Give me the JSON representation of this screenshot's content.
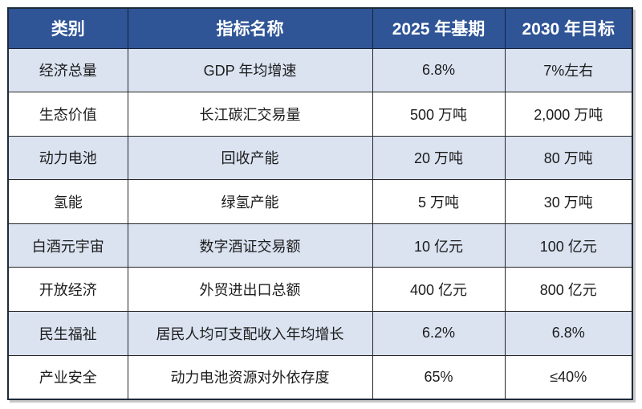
{
  "colors": {
    "header_background": "#2F5597",
    "header_text": "#FFFFFF",
    "row_shaded_background": "#DBE3F1",
    "row_plain_background": "#FFFFFF",
    "body_text": "#1C1C1C",
    "grid_border": "#262626",
    "drop_shadow": "#C9C9C9"
  },
  "chart_data": {
    "type": "table",
    "columns": [
      "类别",
      "指标名称",
      "2025 年基期",
      "2030 年目标"
    ],
    "rows": [
      [
        "经济总量",
        "GDP 年均增速",
        "6.8%",
        "7%左右"
      ],
      [
        "生态价值",
        "长江碳汇交易量",
        "500 万吨",
        "2,000 万吨"
      ],
      [
        "动力电池",
        "回收产能",
        "20 万吨",
        "80 万吨"
      ],
      [
        "氢能",
        "绿氢产能",
        "5 万吨",
        "30 万吨"
      ],
      [
        "白酒元宇宙",
        "数字酒证交易额",
        "10 亿元",
        "100 亿元"
      ],
      [
        "开放经济",
        "外贸进出口总额",
        "400 亿元",
        "800 亿元"
      ],
      [
        "民生福祉",
        "居民人均可支配收入年均增长",
        "6.2%",
        "6.8%"
      ],
      [
        "产业安全",
        "动力电池资源对外依存度",
        "65%",
        "≤40%"
      ]
    ],
    "layout_hints": {
      "header_style": "dark-blue banner, white bold text",
      "row_striping": "rows 1,3,5,7 light blue; rows 2,4,6,8 white",
      "grid": "on"
    }
  }
}
